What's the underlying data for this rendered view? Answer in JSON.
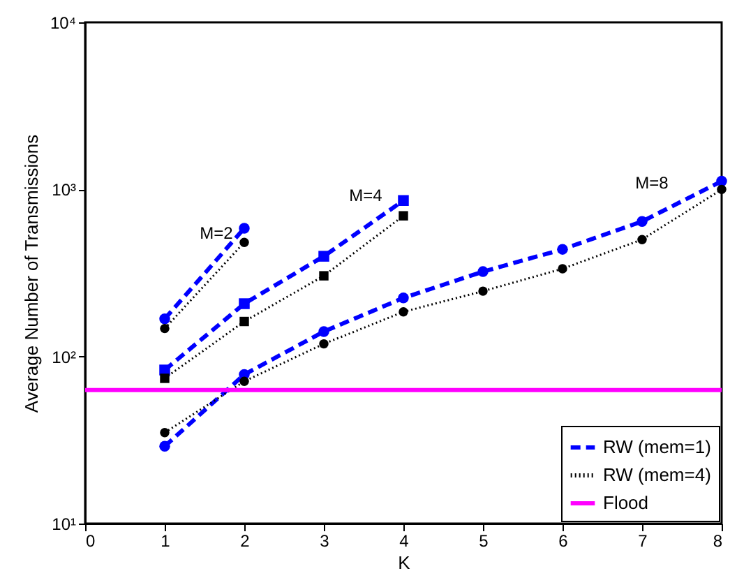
{
  "chart_data": {
    "type": "line",
    "xlabel": "K",
    "ylabel": "Average Number of Transmissions",
    "xlim": [
      0,
      8
    ],
    "xticks": [
      0,
      1,
      2,
      3,
      4,
      5,
      6,
      7,
      8
    ],
    "ylim": [
      10,
      10000
    ],
    "yticks": [
      {
        "value": 10,
        "label": "10¹"
      },
      {
        "value": 100,
        "label": "10²"
      },
      {
        "value": 1000,
        "label": "10³"
      },
      {
        "value": 10000,
        "label": "10⁴"
      }
    ],
    "log": true,
    "grid": false,
    "legend": "bottom right",
    "x": [
      1,
      2,
      3,
      4,
      5,
      6,
      7,
      8
    ],
    "series": [
      {
        "name": "RW (mem=1)",
        "color": "#0000ff",
        "line_style": "dashed",
        "marker": "circle",
        "values": [
          29,
          78,
          141,
          224,
          322,
          438,
          643,
          1120
        ]
      },
      {
        "name": "RW (mem=4)",
        "color": "#000000",
        "line_style": "dotted",
        "marker": "circle",
        "values": [
          35,
          71,
          119,
          185,
          246,
          335,
          501,
          1000
        ]
      },
      {
        "color": "#0000ff",
        "line_style": "dashed",
        "marker": "square",
        "x": [
          1,
          2,
          3,
          4
        ],
        "values": [
          83,
          207,
          398,
          858
        ]
      },
      {
        "color": "#000000",
        "line_style": "dotted",
        "marker": "square",
        "x": [
          1,
          2,
          3,
          4
        ],
        "values": [
          74,
          162,
          304,
          695
        ]
      },
      {
        "color": "#0000ff",
        "line_style": "dashed",
        "marker": "circle",
        "x": [
          1,
          2
        ],
        "values": [
          168,
          585
        ]
      },
      {
        "color": "#000000",
        "line_style": "dotted",
        "marker": "circle",
        "x": [
          1,
          2
        ],
        "values": [
          147,
          482
        ]
      },
      {
        "name": "Flood",
        "color": "#ff00ff",
        "line_style": "solid",
        "marker": "none",
        "x": [
          0,
          8
        ],
        "values": [
          63,
          63
        ]
      }
    ],
    "annotations": [
      "M=2",
      "M=4",
      "M=8"
    ]
  }
}
